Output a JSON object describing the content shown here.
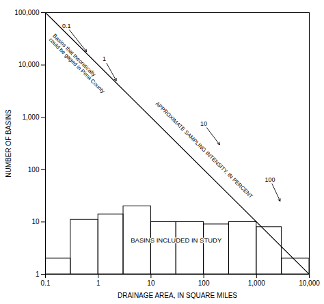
{
  "chart_data": {
    "type": "histogram",
    "xlabel": "DRAINAGE AREA, IN SQUARE MILES",
    "ylabel": "NUMBER OF BASINS",
    "log": true,
    "grid": false,
    "xlim": [
      0.1,
      10000
    ],
    "ylim": [
      1,
      100000
    ],
    "bins": [
      0.1,
      0.3,
      1.0,
      3.0,
      10.0,
      30.0,
      100.0,
      300.0,
      1000.0,
      3000.0,
      10000.0
    ],
    "values": [
      2,
      11,
      14,
      20,
      10,
      10,
      9,
      10,
      8,
      2
    ],
    "xticks": [
      0.1,
      1,
      10,
      100,
      {
        "value": 1000,
        "label": "1,000"
      },
      {
        "value": 10000,
        "label": "10,000"
      }
    ],
    "yticks": [
      1,
      10,
      100,
      {
        "value": 1000,
        "label": "1,000"
      },
      {
        "value": 10000,
        "label": "10,000"
      },
      {
        "value": 100000,
        "label": "100,000"
      }
    ],
    "line": {
      "x": [
        0.1,
        10000
      ],
      "y": [
        100000,
        1
      ]
    },
    "arrow_annotations": [
      {
        "text": "0.1",
        "x": 0.6,
        "y": 18000,
        "text_x": 0.25,
        "text_y": 55000
      },
      {
        "text": "1",
        "x": 2.2,
        "y": 5000,
        "text_x": 1.3,
        "text_y": 13000
      },
      {
        "text": "10",
        "x": 200,
        "y": 300,
        "text_x": 100,
        "text_y": 750
      },
      {
        "text": "100",
        "x": 2800,
        "y": 25,
        "text_x": 1800,
        "text_y": 65
      }
    ],
    "line_labels": [
      {
        "text": "APPROXIMATE SAMPLING INTENSITY, IN PERCENT",
        "x": 12,
        "y": 1800
      },
      {
        "text": "Basins that theoretically\ncould be gaged in Pima County",
        "x": 0.115,
        "y": 30000
      }
    ],
    "text_labels": [
      {
        "text": "BASINS INCLUDED IN STUDY",
        "x": 30,
        "y": 4.5
      }
    ]
  }
}
